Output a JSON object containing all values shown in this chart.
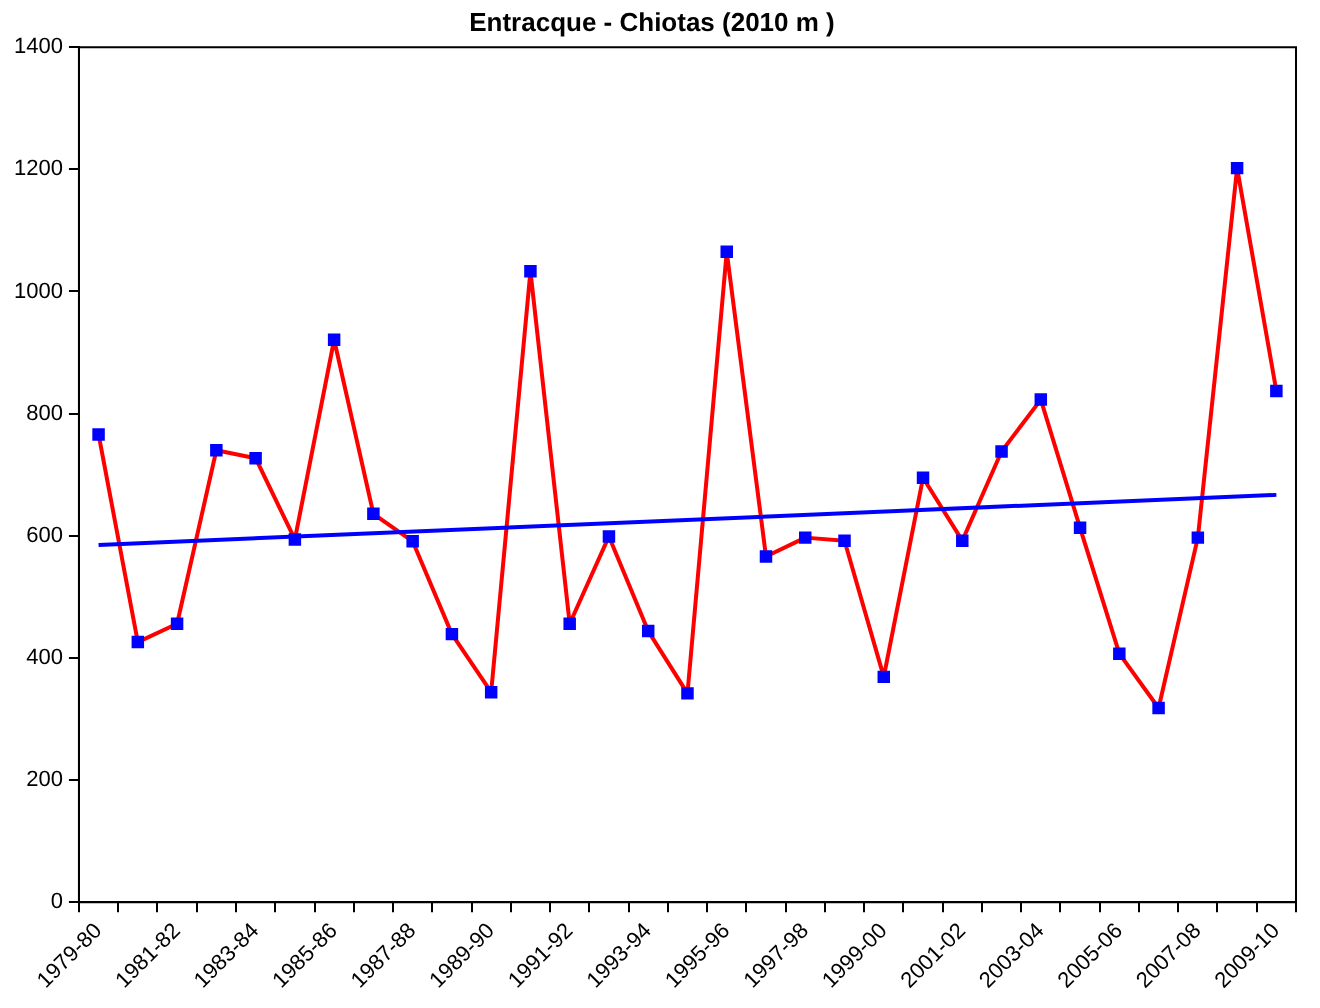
{
  "chart_data": {
    "type": "line",
    "title": "Entracque - Chiotas (2010 m )",
    "categories": [
      "1979-80",
      null,
      "1981-82",
      null,
      "1983-84",
      null,
      "1985-86",
      null,
      "1987-88",
      null,
      "1989-90",
      null,
      "1991-92",
      null,
      "1993-94",
      null,
      "1995-96",
      null,
      "1997-98",
      null,
      "1999-00",
      null,
      "2001-02",
      null,
      "2003-04",
      null,
      "2005-06",
      null,
      "2007-08",
      null,
      "2009-10"
    ],
    "series": [
      {
        "color": "#ff0000",
        "marker": "square",
        "colors": [
          "#0000ff",
          "#0000ff",
          "#0000ff",
          "#0000ff",
          "#0000ff",
          "#0000ff",
          "#0000ff",
          "#0000ff",
          "#0000ff",
          "#0000ff",
          "#0000ff",
          "#0000ff",
          "#0000ff",
          "#0000ff",
          "#0000ff",
          "#0000ff",
          "#0000ff",
          "#0000ff",
          "#0000ff",
          "#0000ff",
          "#0000ff",
          "#0000ff",
          "#0000ff",
          "#0000ff",
          "#0000ff",
          "#0000ff",
          "#0000ff",
          "#0000ff",
          "#0000ff",
          "#0000ff",
          "#0000ff"
        ],
        "values": [
          766,
          426,
          456,
          740,
          727,
          594,
          921,
          636,
          591,
          439,
          344,
          1033,
          456,
          599,
          444,
          342,
          1065,
          566,
          597,
          592,
          369,
          695,
          592,
          738,
          823,
          613,
          407,
          318,
          597,
          1202,
          837
        ]
      },
      {
        "type": "line",
        "color": "#0000ff",
        "marker": "none",
        "values": [
          585,
          null,
          null,
          null,
          null,
          null,
          null,
          null,
          null,
          null,
          null,
          null,
          null,
          null,
          null,
          null,
          null,
          null,
          null,
          null,
          null,
          null,
          null,
          null,
          null,
          null,
          null,
          null,
          null,
          null,
          667
        ]
      }
    ],
    "ylim": [
      0,
      1400
    ],
    "yticks": [
      0,
      200,
      400,
      600,
      800,
      1000,
      1200,
      1400
    ],
    "grid": false,
    "legend": false,
    "line_style": "solid"
  }
}
